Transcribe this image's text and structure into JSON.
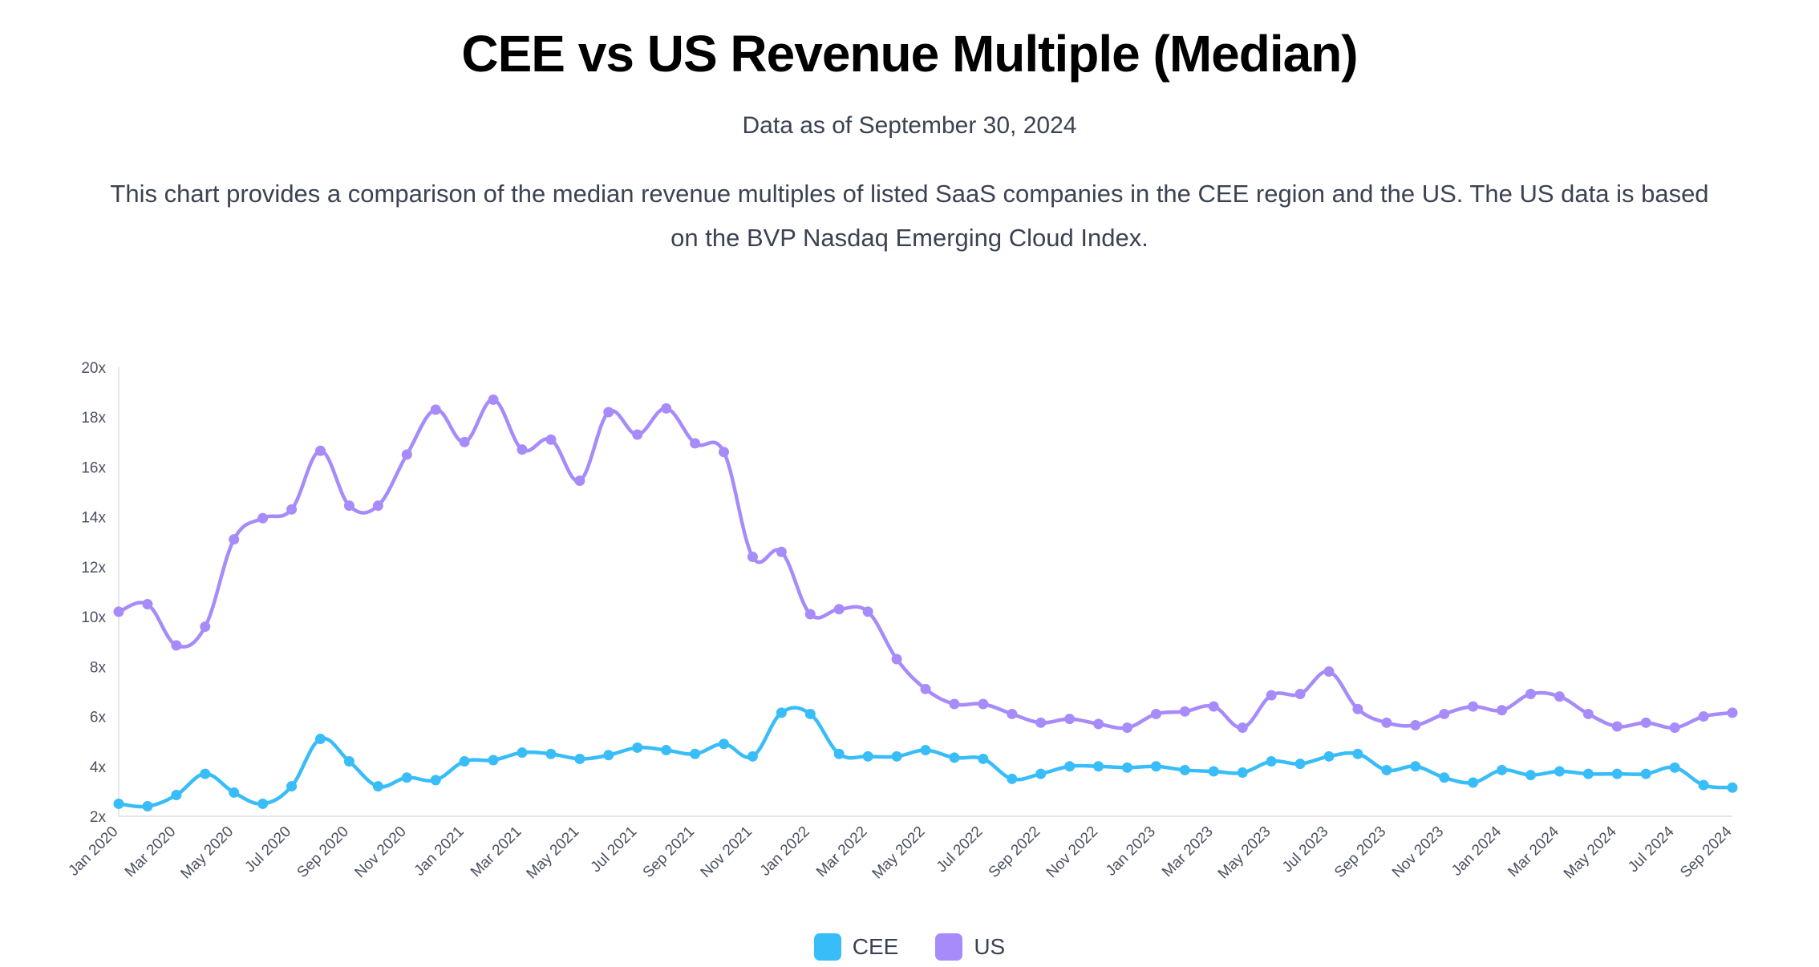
{
  "header": {
    "title": "CEE vs US Revenue Multiple (Median)",
    "subtitle": "Data as of September 30, 2024",
    "description": "This chart provides a comparison of the median revenue multiples of listed SaaS companies in the CEE region and the US. The US data is based on the BVP Nasdaq Emerging Cloud Index."
  },
  "colors": {
    "cee": "#38bdf8",
    "us": "#a78bfa",
    "axis": "#e5e7eb"
  },
  "chart_data": {
    "type": "line",
    "title": "CEE vs US Revenue Multiple (Median)",
    "xlabel": "",
    "ylabel": "",
    "ylim": [
      2,
      20
    ],
    "yticks": [
      2,
      4,
      6,
      8,
      10,
      12,
      14,
      16,
      18,
      20
    ],
    "ytick_labels": [
      "2x",
      "4x",
      "6x",
      "8x",
      "10x",
      "12x",
      "14x",
      "16x",
      "18x",
      "20x"
    ],
    "grid": false,
    "legend": "bottom-center",
    "x": [
      "Jan 2020",
      "Feb 2020",
      "Mar 2020",
      "Apr 2020",
      "May 2020",
      "Jun 2020",
      "Jul 2020",
      "Aug 2020",
      "Sep 2020",
      "Oct 2020",
      "Nov 2020",
      "Dec 2020",
      "Jan 2021",
      "Feb 2021",
      "Mar 2021",
      "Apr 2021",
      "May 2021",
      "Jun 2021",
      "Jul 2021",
      "Aug 2021",
      "Sep 2021",
      "Oct 2021",
      "Nov 2021",
      "Dec 2021",
      "Jan 2022",
      "Feb 2022",
      "Mar 2022",
      "Apr 2022",
      "May 2022",
      "Jun 2022",
      "Jul 2022",
      "Aug 2022",
      "Sep 2022",
      "Oct 2022",
      "Nov 2022",
      "Dec 2022",
      "Jan 2023",
      "Feb 2023",
      "Mar 2023",
      "Apr 2023",
      "May 2023",
      "Jun 2023",
      "Jul 2023",
      "Aug 2023",
      "Sep 2023",
      "Oct 2023",
      "Nov 2023",
      "Dec 2023",
      "Jan 2024",
      "Feb 2024",
      "Mar 2024",
      "Apr 2024",
      "May 2024",
      "Jun 2024",
      "Jul 2024",
      "Aug 2024",
      "Sep 2024"
    ],
    "xtick_labels": [
      "Jan 2020",
      "Mar 2020",
      "May 2020",
      "Jul 2020",
      "Sep 2020",
      "Nov 2020",
      "Jan 2021",
      "Mar 2021",
      "May 2021",
      "Jul 2021",
      "Sep 2021",
      "Nov 2021",
      "Jan 2022",
      "Mar 2022",
      "May 2022",
      "Jul 2022",
      "Sep 2022",
      "Nov 2022",
      "Jan 2023",
      "Mar 2023",
      "May 2023",
      "Jul 2023",
      "Sep 2023",
      "Nov 2023",
      "Jan 2024",
      "Mar 2024",
      "May 2024",
      "Jul 2024",
      "Sep 2024"
    ],
    "series": [
      {
        "name": "CEE",
        "values": [
          2.5,
          2.4,
          2.85,
          3.7,
          2.95,
          2.5,
          3.2,
          5.1,
          4.2,
          3.2,
          3.55,
          3.45,
          4.2,
          4.25,
          4.55,
          4.5,
          4.3,
          4.45,
          4.75,
          4.65,
          4.5,
          4.9,
          4.4,
          6.15,
          6.1,
          4.5,
          4.4,
          4.4,
          4.65,
          4.35,
          4.3,
          3.5,
          3.7,
          4.0,
          4.0,
          3.95,
          4.0,
          3.85,
          3.8,
          3.75,
          4.2,
          4.1,
          4.4,
          4.5,
          3.85,
          4.0,
          3.55,
          3.35,
          3.85,
          3.65,
          3.8,
          3.7,
          3.7,
          3.7,
          3.95,
          3.25,
          3.15
        ]
      },
      {
        "name": "US",
        "values": [
          10.2,
          10.5,
          8.85,
          9.6,
          13.1,
          13.95,
          14.3,
          16.65,
          14.45,
          14.45,
          16.5,
          18.3,
          17.0,
          18.7,
          16.7,
          17.1,
          15.45,
          18.2,
          17.3,
          18.35,
          16.95,
          16.6,
          12.4,
          12.6,
          10.1,
          10.3,
          10.2,
          8.3,
          7.1,
          6.5,
          6.5,
          6.1,
          5.75,
          5.9,
          5.7,
          5.55,
          6.1,
          6.2,
          6.4,
          5.55,
          6.85,
          6.9,
          7.8,
          6.3,
          5.75,
          5.65,
          6.1,
          6.4,
          6.25,
          6.9,
          6.8,
          6.1,
          5.6,
          5.75,
          5.55,
          6.0,
          6.15
        ]
      }
    ]
  },
  "legend": {
    "items": [
      {
        "label": "CEE"
      },
      {
        "label": "US"
      }
    ]
  }
}
